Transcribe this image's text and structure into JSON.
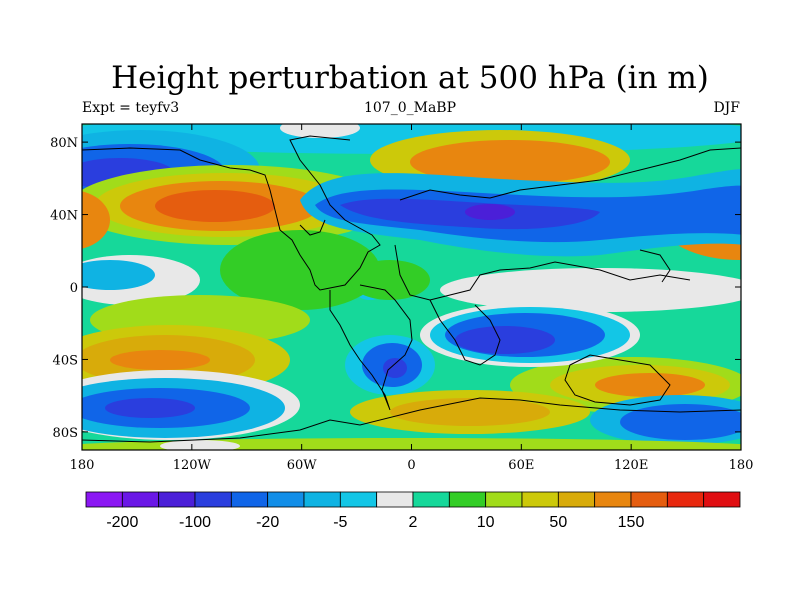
{
  "chart_data": {
    "type": "heatmap",
    "title": "Height perturbation at 500 hPa (in m)",
    "left_label": "Expt = teyfv3",
    "center_label": "107_0_MaBP",
    "right_label": "DJF",
    "x_ticks": [
      "180",
      "120W",
      "60W",
      "0",
      "60E",
      "120E",
      "180"
    ],
    "y_ticks": [
      "80N",
      "40N",
      "0",
      "40S",
      "80S"
    ],
    "xlim": [
      -180,
      180
    ],
    "ylim": [
      -90,
      90
    ],
    "colorbar": {
      "colors": [
        "#8b17f3",
        "#6a17e6",
        "#4b1fd8",
        "#2a3ede",
        "#1065e8",
        "#128ee8",
        "#0fb3e3",
        "#13c6e6",
        "#e8e8e8",
        "#16d89a",
        "#33cd26",
        "#a1dc1a",
        "#ccc90a",
        "#d8ab0a",
        "#e8860f",
        "#e55d0f",
        "#e8280e",
        "#e00e12"
      ],
      "labels": [
        "-200",
        "-100",
        "-20",
        "-5",
        "2",
        "10",
        "50",
        "150"
      ]
    }
  }
}
